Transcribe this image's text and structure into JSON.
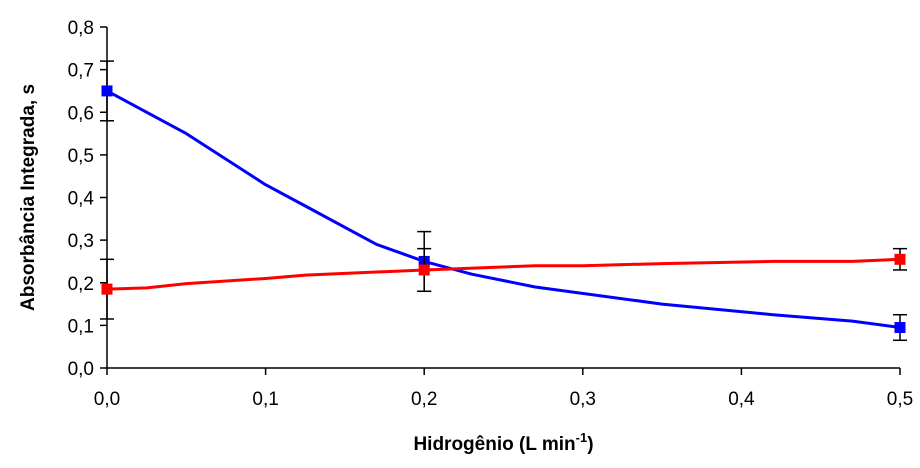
{
  "chart_data": {
    "type": "line",
    "xlabel": "Hidrogênio (L min",
    "xlabel_sup": "-1",
    "xlabel_end": ")",
    "ylabel": "Absorbância Integrada, s",
    "xlim": [
      0.0,
      0.5
    ],
    "ylim": [
      0.0,
      0.8
    ],
    "x_ticks": [
      "0,0",
      "0,1",
      "0,2",
      "0,3",
      "0,4",
      "0,5"
    ],
    "y_ticks": [
      "0,0",
      "0,1",
      "0,2",
      "0,3",
      "0,4",
      "0,5",
      "0,6",
      "0,7",
      "0,8"
    ],
    "grid": false,
    "series": [
      {
        "color": "#0000ff",
        "marker": "square",
        "points": [
          {
            "x": 0.0,
            "y": 0.65,
            "err": 0.07
          },
          {
            "x": 0.2,
            "y": 0.25,
            "err": 0.07
          },
          {
            "x": 0.5,
            "y": 0.095,
            "err": 0.03
          }
        ],
        "curve": [
          [
            0.0,
            0.65
          ],
          [
            0.05,
            0.55
          ],
          [
            0.1,
            0.43
          ],
          [
            0.125,
            0.38
          ],
          [
            0.17,
            0.29
          ],
          [
            0.2,
            0.25
          ],
          [
            0.23,
            0.22
          ],
          [
            0.27,
            0.19
          ],
          [
            0.35,
            0.15
          ],
          [
            0.42,
            0.125
          ],
          [
            0.47,
            0.11
          ],
          [
            0.5,
            0.095
          ]
        ]
      },
      {
        "color": "#ff0000",
        "marker": "square",
        "points": [
          {
            "x": 0.0,
            "y": 0.185,
            "err": 0.07
          },
          {
            "x": 0.2,
            "y": 0.23,
            "err": 0.05
          },
          {
            "x": 0.5,
            "y": 0.255,
            "err": 0.025
          }
        ],
        "curve": [
          [
            0.0,
            0.185
          ],
          [
            0.025,
            0.188
          ],
          [
            0.05,
            0.198
          ],
          [
            0.1,
            0.21
          ],
          [
            0.125,
            0.218
          ],
          [
            0.2,
            0.23
          ],
          [
            0.27,
            0.24
          ],
          [
            0.3,
            0.24
          ],
          [
            0.35,
            0.245
          ],
          [
            0.42,
            0.25
          ],
          [
            0.47,
            0.25
          ],
          [
            0.5,
            0.255
          ]
        ]
      }
    ]
  }
}
